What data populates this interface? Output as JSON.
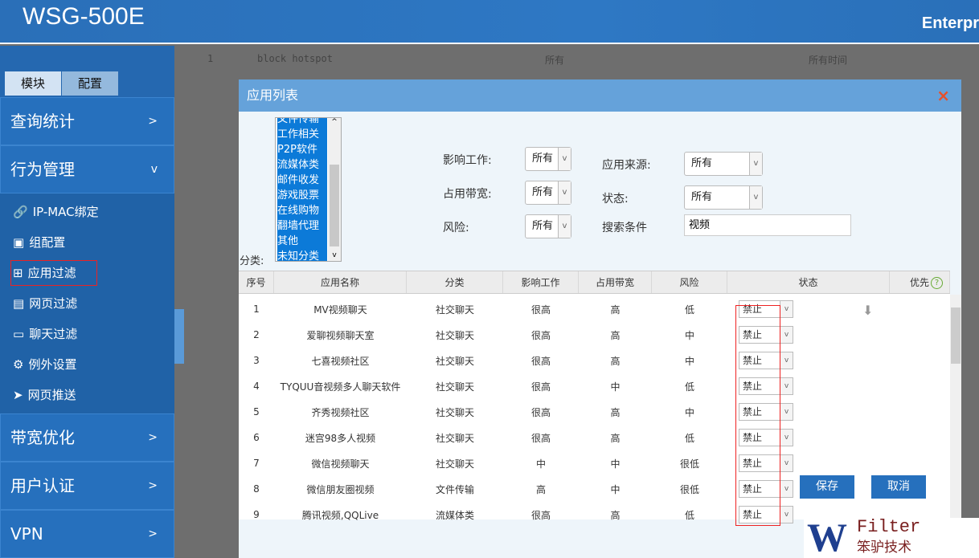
{
  "header": {
    "logo": "WSG-500E",
    "right": "Enterpr"
  },
  "sidebar": {
    "tabs": [
      "模块",
      "配置"
    ],
    "menus": [
      {
        "label": "查询统计",
        "chev": ">"
      },
      {
        "label": "行为管理",
        "chev": "v"
      }
    ],
    "sub_items": [
      {
        "label": "IP-MAC绑定",
        "icon": "link-icon"
      },
      {
        "label": "组配置",
        "icon": "id-card-icon"
      },
      {
        "label": "应用过滤",
        "icon": "grid-icon",
        "selected": true
      },
      {
        "label": "网页过滤",
        "icon": "page-icon"
      },
      {
        "label": "聊天过滤",
        "icon": "chat-icon"
      },
      {
        "label": "例外设置",
        "icon": "gear-icon"
      },
      {
        "label": "网页推送",
        "icon": "send-icon"
      }
    ],
    "menus2": [
      {
        "label": "带宽优化",
        "chev": ">"
      },
      {
        "label": "用户认证",
        "chev": ">"
      },
      {
        "label": "VPN",
        "chev": ">"
      }
    ]
  },
  "background": {
    "row": [
      "1",
      "block hotspot",
      "所有",
      "所有时间"
    ]
  },
  "modal": {
    "title": "应用列表",
    "close": "×",
    "category_label": "分类:",
    "categories": [
      "文件传输",
      "工作相关",
      "P2P软件",
      "流媒体类",
      "邮件收发",
      "游戏股票",
      "在线购物",
      "翻墙代理",
      "其他",
      "未知分类"
    ],
    "filters": {
      "impact_label": "影响工作:",
      "impact": "所有",
      "bandwidth_label": "占用带宽:",
      "bandwidth": "所有",
      "risk_label": "风险:",
      "risk": "所有",
      "source_label": "应用来源:",
      "source": "所有",
      "status_label": "状态:",
      "status": "所有",
      "search_label": "搜索条件",
      "search": "视频"
    },
    "columns": [
      "序号",
      "应用名称",
      "分类",
      "影响工作",
      "占用带宽",
      "风险",
      "状态",
      "优先"
    ],
    "rows": [
      [
        "1",
        "MV视频聊天",
        "社交聊天",
        "很高",
        "高",
        "低",
        "禁止"
      ],
      [
        "2",
        "爱聊视频聊天室",
        "社交聊天",
        "很高",
        "高",
        "中",
        "禁止"
      ],
      [
        "3",
        "七喜视频社区",
        "社交聊天",
        "很高",
        "高",
        "中",
        "禁止"
      ],
      [
        "4",
        "TYQUU音视频多人聊天软件",
        "社交聊天",
        "很高",
        "中",
        "低",
        "禁止"
      ],
      [
        "5",
        "齐秀视频社区",
        "社交聊天",
        "很高",
        "高",
        "中",
        "禁止"
      ],
      [
        "6",
        "迷宫98多人视频",
        "社交聊天",
        "很高",
        "高",
        "低",
        "禁止"
      ],
      [
        "7",
        "微信视频聊天",
        "社交聊天",
        "中",
        "中",
        "很低",
        "禁止"
      ],
      [
        "8",
        "微信朋友圈视频",
        "文件传输",
        "高",
        "中",
        "很低",
        "禁止"
      ],
      [
        "9",
        "腾讯视频,QQLive",
        "流媒体类",
        "很高",
        "高",
        "低",
        "禁止"
      ]
    ],
    "save": "保存",
    "cancel": "取消"
  },
  "watermark": {
    "brand": "Filter",
    "cn": "笨驴技术"
  },
  "colors": {
    "accent": "#2670bd",
    "highlight": "#e22222"
  }
}
